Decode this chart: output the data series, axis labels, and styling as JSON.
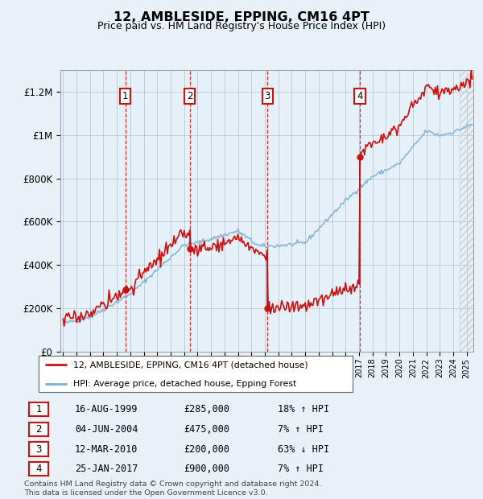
{
  "title": "12, AMBLESIDE, EPPING, CM16 4PT",
  "subtitle": "Price paid vs. HM Land Registry's House Price Index (HPI)",
  "legend_label_red": "12, AMBLESIDE, EPPING, CM16 4PT (detached house)",
  "legend_label_blue": "HPI: Average price, detached house, Epping Forest",
  "footnote": "Contains HM Land Registry data © Crown copyright and database right 2024.\nThis data is licensed under the Open Government Licence v3.0.",
  "transactions": [
    {
      "num": 1,
      "date": "16-AUG-1999",
      "price": 285000,
      "pct": "18%",
      "dir": "↑",
      "year": 1999.62
    },
    {
      "num": 2,
      "date": "04-JUN-2004",
      "price": 475000,
      "pct": "7%",
      "dir": "↑",
      "year": 2004.42
    },
    {
      "num": 3,
      "date": "12-MAR-2010",
      "price": 200000,
      "pct": "63%",
      "dir": "↓",
      "year": 2010.19
    },
    {
      "num": 4,
      "date": "25-JAN-2017",
      "price": 900000,
      "pct": "7%",
      "dir": "↑",
      "year": 2017.07
    }
  ],
  "hpi_color": "#7aadd4",
  "price_color": "#cc1111",
  "background_color": "#e8f0f8",
  "plot_bg": "#ffffff",
  "ylim": [
    0,
    1300000
  ],
  "xlim_start": 1994.8,
  "xlim_end": 2025.5,
  "yticks": [
    0,
    200000,
    400000,
    600000,
    800000,
    1000000,
    1200000
  ],
  "ytick_labels": [
    "£0",
    "£200K",
    "£400K",
    "£600K",
    "£800K",
    "£1M",
    "£1.2M"
  ]
}
